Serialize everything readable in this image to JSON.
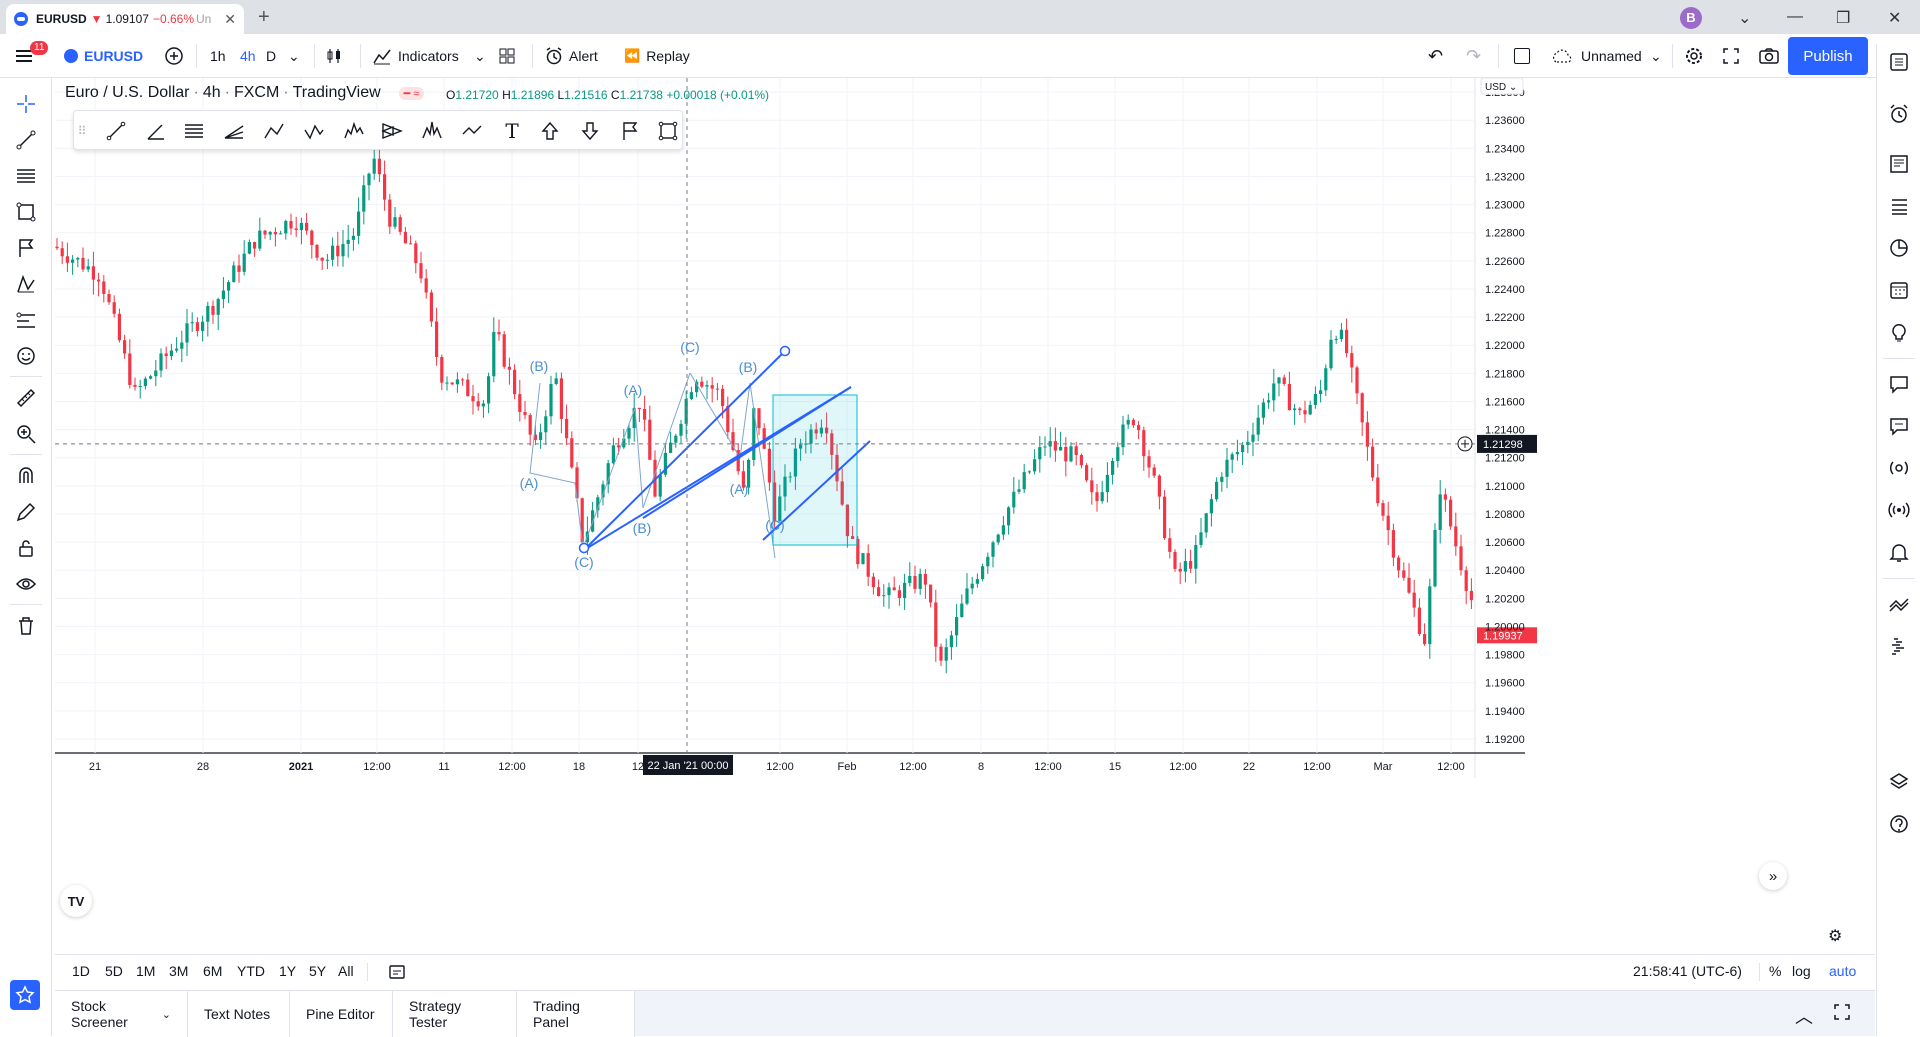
{
  "browser": {
    "tab_symbol": "EURUSD",
    "tab_arrow": "▼",
    "tab_price": "1.09107",
    "tab_change": "−0.66%",
    "tab_truncated": "Un",
    "avatar_letter": "B"
  },
  "toolbar": {
    "menu_badge": "11",
    "symbol": "EURUSD",
    "intervals": [
      "1h",
      "4h",
      "D"
    ],
    "indicators_label": "Indicators",
    "alert_label": "Alert",
    "replay_label": "Replay",
    "layout_name": "Unnamed",
    "publish_label": "Publish"
  },
  "legend": {
    "name": "Euro / U.S. Dollar",
    "interval": "4h",
    "exchange": "FXCM",
    "source": "TradingView",
    "o_label": "O",
    "o": "1.21720",
    "h_label": "H",
    "h": "1.21896",
    "l_label": "L",
    "l": "1.21516",
    "c_label": "C",
    "c": "1.21738",
    "change": "+0.00018 (+0.01%)"
  },
  "price_scale": {
    "currency": "USD",
    "ticks": [
      "1.23800",
      "1.23600",
      "1.23400",
      "1.23200",
      "1.23000",
      "1.22800",
      "1.22600",
      "1.22400",
      "1.22200",
      "1.22000",
      "1.21800",
      "1.21600",
      "1.21400",
      "1.21200",
      "1.21000",
      "1.20800",
      "1.20600",
      "1.20400",
      "1.20200",
      "1.20000",
      "1.19800",
      "1.19600",
      "1.19400",
      "1.19200"
    ],
    "crosshair_price": "1.21298",
    "last_price": "1.19937"
  },
  "time_scale": {
    "ticks": [
      "21",
      "28",
      "2021",
      "12:00",
      "11",
      "12:00",
      "18",
      "12",
      "12:00",
      "Feb",
      "12:00",
      "8",
      "12:00",
      "15",
      "12:00",
      "22",
      "12:00",
      "Mar",
      "12:00"
    ],
    "crosshair_time": "22 Jan '21   00:00"
  },
  "wave_labels": [
    "(B)",
    "(A)",
    "(C)",
    "(A)",
    "(B)",
    "(C)",
    "(B)",
    "(A)",
    "(C)"
  ],
  "range_buttons": [
    "1D",
    "5D",
    "1M",
    "3M",
    "6M",
    "YTD",
    "1Y",
    "5Y",
    "All"
  ],
  "clock": "21:58:41 (UTC-6)",
  "scale_opts": [
    "%",
    "log",
    "auto"
  ],
  "bottom_tabs": [
    "Stock Screener",
    "Text Notes",
    "Pine Editor",
    "Strategy Tester",
    "Trading Panel"
  ],
  "colors": {
    "up": "#089981",
    "down": "#f23645",
    "drawing": "#2962ff",
    "wave_text": "#4a8fd1",
    "accent": "#2962ff"
  }
}
